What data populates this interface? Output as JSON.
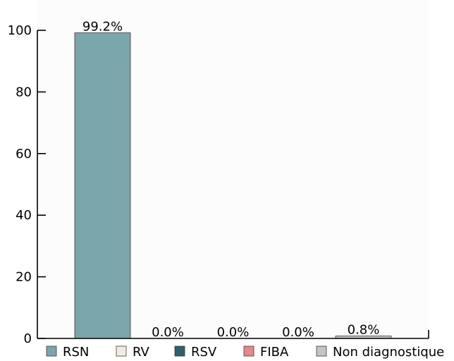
{
  "chart_data": {
    "type": "bar",
    "categories": [
      "RSN",
      "RV",
      "RSV",
      "FIBA",
      "Non diagnostique"
    ],
    "values": [
      99.2,
      0.0,
      0.0,
      0.0,
      0.8
    ],
    "value_labels": [
      "99.2%",
      "0.0%",
      "0.0%",
      "0.0%",
      "0.8%"
    ],
    "colors": [
      "#7aa6ac",
      "#f1ece2",
      "#2f5f6b",
      "#e58a8a",
      "#c4c4c4"
    ],
    "ylim": [
      0,
      100
    ],
    "yticks": [
      0,
      20,
      40,
      60,
      80,
      100
    ],
    "title": "",
    "xlabel": "",
    "ylabel": "",
    "grid": false,
    "legend_position": "bottom",
    "legend": [
      "RSN",
      "RV",
      "RSV",
      "FIBA",
      "Non diagnostique"
    ]
  }
}
